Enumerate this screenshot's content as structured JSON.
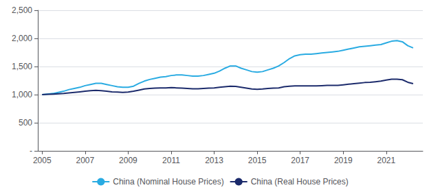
{
  "chart_data": {
    "type": "line",
    "x": [
      2005.0,
      2005.25,
      2005.5,
      2005.75,
      2006.0,
      2006.25,
      2006.5,
      2006.75,
      2007.0,
      2007.25,
      2007.5,
      2007.75,
      2008.0,
      2008.25,
      2008.5,
      2008.75,
      2009.0,
      2009.25,
      2009.5,
      2009.75,
      2010.0,
      2010.25,
      2010.5,
      2010.75,
      2011.0,
      2011.25,
      2011.5,
      2011.75,
      2012.0,
      2012.25,
      2012.5,
      2012.75,
      2013.0,
      2013.25,
      2013.5,
      2013.75,
      2014.0,
      2014.25,
      2014.5,
      2014.75,
      2015.0,
      2015.25,
      2015.5,
      2015.75,
      2016.0,
      2016.25,
      2016.5,
      2016.75,
      2017.0,
      2017.25,
      2017.5,
      2017.75,
      2018.0,
      2018.25,
      2018.5,
      2018.75,
      2019.0,
      2019.25,
      2019.5,
      2019.75,
      2020.0,
      2020.25,
      2020.5,
      2020.75,
      2021.0,
      2021.25,
      2021.5,
      2021.75,
      2022.0,
      2022.25
    ],
    "series": [
      {
        "name": "China (Nominal House Prices)",
        "color": "#29ABE2",
        "values": [
          1000,
          1010,
          1020,
          1040,
          1060,
          1090,
          1110,
          1130,
          1160,
          1180,
          1200,
          1200,
          1180,
          1160,
          1140,
          1130,
          1130,
          1150,
          1200,
          1240,
          1270,
          1290,
          1310,
          1320,
          1340,
          1350,
          1350,
          1340,
          1330,
          1330,
          1340,
          1360,
          1380,
          1420,
          1470,
          1510,
          1510,
          1470,
          1440,
          1410,
          1400,
          1410,
          1440,
          1470,
          1510,
          1570,
          1640,
          1690,
          1710,
          1720,
          1720,
          1730,
          1740,
          1750,
          1760,
          1770,
          1790,
          1810,
          1830,
          1850,
          1860,
          1870,
          1880,
          1890,
          1920,
          1950,
          1960,
          1940,
          1870,
          1830
        ]
      },
      {
        "name": "China (Real House Prices)",
        "color": "#1B2A6B",
        "values": [
          1000,
          1005,
          1010,
          1015,
          1020,
          1030,
          1040,
          1050,
          1060,
          1070,
          1075,
          1070,
          1060,
          1050,
          1045,
          1040,
          1045,
          1060,
          1080,
          1100,
          1110,
          1115,
          1120,
          1120,
          1125,
          1120,
          1115,
          1110,
          1105,
          1105,
          1110,
          1115,
          1120,
          1130,
          1140,
          1150,
          1145,
          1130,
          1115,
          1100,
          1095,
          1100,
          1110,
          1115,
          1120,
          1140,
          1150,
          1155,
          1155,
          1155,
          1155,
          1155,
          1160,
          1165,
          1165,
          1165,
          1175,
          1185,
          1195,
          1205,
          1215,
          1220,
          1230,
          1240,
          1260,
          1275,
          1275,
          1265,
          1220,
          1195
        ]
      }
    ],
    "xlim": [
      2004.8,
      2022.7
    ],
    "xticks": [
      2005,
      2007,
      2009,
      2011,
      2013,
      2015,
      2017,
      2019,
      2021
    ],
    "ylim": [
      0,
      2500
    ],
    "yticks": [
      {
        "value": 0,
        "label": "-"
      },
      500,
      {
        "value": 1000,
        "label": "1,000"
      },
      {
        "value": 1500,
        "label": "1,500"
      },
      {
        "value": 2000,
        "label": "2,000"
      },
      {
        "value": 2500,
        "label": "2,500"
      }
    ],
    "grid": true,
    "legend": "bottom"
  }
}
